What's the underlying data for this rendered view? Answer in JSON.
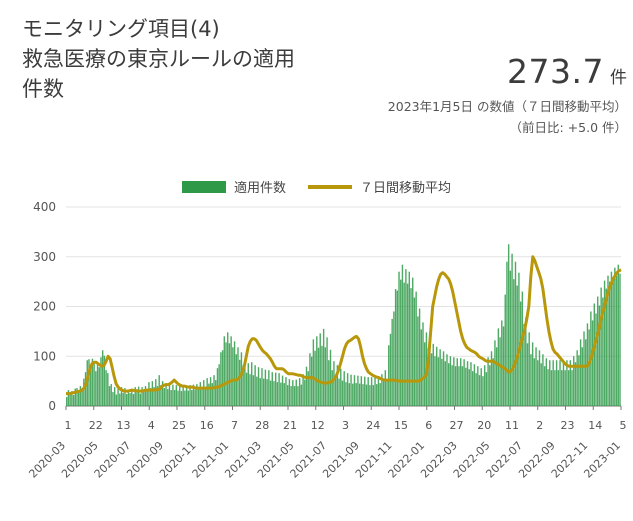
{
  "header": {
    "title_line1": "モニタリング項目(4)",
    "title_line2": "救急医療の東京ルールの適用",
    "title_line3": "件数",
    "value": "273.7",
    "unit": "件",
    "date_note": "2023年1月5日 の数値（７日間移動平均）",
    "diff_note": "（前日比: +5.0 件）"
  },
  "colors": {
    "bar": "#2e9a48",
    "line": "#b8970a",
    "grid": "#e3e3e3",
    "axis": "#777777"
  },
  "chart_data": {
    "type": "bar",
    "title": "救急医療の東京ルールの適用件数",
    "legend": [
      "適用件数",
      "７日間移動平均"
    ],
    "legend_position": "top",
    "ylim": [
      0,
      400
    ],
    "y_ticks": [
      "0",
      "100",
      "200",
      "300",
      "400"
    ],
    "x_day_ticks": [
      "1",
      "22",
      "13",
      "4",
      "25",
      "16",
      "7",
      "28",
      "21",
      "12",
      "3",
      "24",
      "15",
      "6",
      "27",
      "20",
      "11",
      "2",
      "23",
      "14",
      "5"
    ],
    "x_month_ticks": [
      "2020-03",
      "2020-05",
      "2020-07",
      "2020-09",
      "2020-11",
      "2021-01",
      "2021-03",
      "2021-05",
      "2021-07",
      "2021-09",
      "2021-11",
      "2022-01",
      "2022-03",
      "2022-05",
      "2022-07",
      "2022-09",
      "2022-11",
      "2023-01"
    ],
    "x_range": [
      "2020-03-01",
      "2023-01-05"
    ],
    "interval_days": 3,
    "series": [
      {
        "name": "７日間移動平均",
        "style": "line",
        "values": [
          25,
          25,
          25,
          26,
          27,
          28,
          29,
          30,
          32,
          36,
          45,
          60,
          75,
          85,
          88,
          88,
          85,
          82,
          80,
          82,
          90,
          100,
          95,
          78,
          60,
          45,
          38,
          34,
          32,
          30,
          30,
          30,
          31,
          32,
          31,
          31,
          30,
          30,
          30,
          31,
          32,
          32,
          32,
          32,
          32,
          33,
          33,
          35,
          40,
          42,
          43,
          43,
          45,
          48,
          52,
          48,
          44,
          42,
          40,
          40,
          39,
          38,
          38,
          38,
          37,
          36,
          36,
          36,
          36,
          36,
          36,
          36,
          36,
          36,
          37,
          38,
          38,
          40,
          42,
          44,
          46,
          48,
          50,
          52,
          52,
          52,
          55,
          60,
          68,
          80,
          100,
          120,
          130,
          135,
          135,
          132,
          125,
          118,
          112,
          108,
          105,
          100,
          95,
          88,
          80,
          75,
          75,
          75,
          75,
          72,
          68,
          65,
          65,
          65,
          64,
          63,
          62,
          62,
          60,
          58,
          57,
          57,
          57,
          57,
          55,
          52,
          50,
          48,
          47,
          46,
          46,
          47,
          48,
          50,
          55,
          62,
          72,
          85,
          100,
          115,
          125,
          130,
          132,
          135,
          138,
          140,
          135,
          120,
          100,
          85,
          75,
          68,
          65,
          62,
          60,
          58,
          57,
          55,
          53,
          52,
          52,
          52,
          52,
          52,
          52,
          51,
          50,
          50,
          50,
          50,
          50,
          50,
          50,
          50,
          50,
          50,
          50,
          52,
          55,
          58,
          65,
          100,
          150,
          200,
          220,
          240,
          255,
          265,
          268,
          265,
          260,
          255,
          245,
          230,
          210,
          190,
          170,
          150,
          135,
          125,
          118,
          115,
          112,
          110,
          108,
          105,
          100,
          97,
          95,
          92,
          90,
          90,
          90,
          90,
          88,
          85,
          83,
          80,
          78,
          75,
          72,
          68,
          70,
          75,
          85,
          95,
          110,
          125,
          140,
          155,
          175,
          200,
          260,
          300,
          292,
          280,
          268,
          255,
          235,
          205,
          175,
          150,
          130,
          115,
          108,
          105,
          100,
          95,
          90,
          85,
          82,
          80,
          80,
          80,
          80,
          80,
          80,
          80,
          80,
          80,
          80,
          85,
          95,
          110,
          125,
          140,
          155,
          175,
          190,
          205,
          220,
          235,
          245,
          255,
          262,
          268,
          272,
          273.7
        ]
      },
      {
        "name": "適用件数",
        "style": "bar",
        "values": [
          18,
          32,
          24,
          30,
          22,
          35,
          36,
          27,
          40,
          34,
          55,
          68,
          92,
          94,
          80,
          95,
          90,
          70,
          88,
          78,
          98,
          112,
          101,
          72,
          66,
          40,
          44,
          28,
          38,
          23,
          34,
          25,
          38,
          26,
          36,
          24,
          33,
          26,
          35,
          24,
          38,
          28,
          39,
          25,
          38,
          29,
          40,
          30,
          48,
          36,
          50,
          38,
          54,
          40,
          62,
          42,
          50,
          36,
          46,
          34,
          44,
          32,
          43,
          32,
          42,
          31,
          41,
          30,
          42,
          31,
          41,
          31,
          42,
          32,
          43,
          33,
          44,
          34,
          48,
          37,
          52,
          39,
          56,
          45,
          58,
          46,
          62,
          52,
          76,
          84,
          108,
          112,
          140,
          128,
          148,
          126,
          140,
          118,
          130,
          104,
          118,
          93,
          108,
          82,
          92,
          67,
          86,
          64,
          88,
          62,
          82,
          59,
          78,
          56,
          76,
          55,
          73,
          54,
          72,
          51,
          68,
          50,
          67,
          48,
          66,
          47,
          61,
          46,
          58,
          42,
          54,
          40,
          52,
          40,
          53,
          40,
          56,
          43,
          64,
          53,
          79,
          70,
          106,
          99,
          134,
          111,
          140,
          117,
          146,
          121,
          155,
          118,
          138,
          92,
          113,
          72,
          90,
          60,
          82,
          55,
          75,
          51,
          70,
          48,
          66,
          46,
          63,
          45,
          62,
          46,
          61,
          45,
          60,
          44,
          59,
          43,
          58,
          42,
          58,
          42,
          58,
          44,
          60,
          46,
          64,
          50,
          72,
          52,
          122,
          145,
          175,
          190,
          235,
          232,
          270,
          254,
          284,
          248,
          275,
          246,
          270,
          237,
          258,
          218,
          230,
          180,
          196,
          154,
          168,
          128,
          148,
          116,
          134,
          106,
          125,
          100,
          119,
          98,
          114,
          95,
          110,
          90,
          104,
          86,
          100,
          82,
          98,
          80,
          96,
          80,
          96,
          80,
          94,
          77,
          90,
          74,
          88,
          70,
          84,
          66,
          80,
          62,
          76,
          60,
          82,
          68,
          98,
          82,
          110,
          96,
          132,
          118,
          156,
          138,
          172,
          160,
          224,
          290,
          325,
          272,
          306,
          255,
          290,
          242,
          268,
          210,
          230,
          165,
          178,
          126,
          148,
          104,
          128,
          96,
          118,
          92,
          112,
          86,
          104,
          80,
          96,
          74,
          92,
          72,
          92,
          72,
          92,
          72,
          92,
          72,
          92,
          72,
          92,
          72,
          92,
          72,
          100,
          88,
          112,
          102,
          134,
          118,
          150,
          134,
          166,
          154,
          190,
          172,
          206,
          186,
          220,
          202,
          238,
          218,
          252,
          236,
          262,
          250,
          270,
          256,
          278,
          262,
          284,
          266
        ]
      }
    ]
  }
}
